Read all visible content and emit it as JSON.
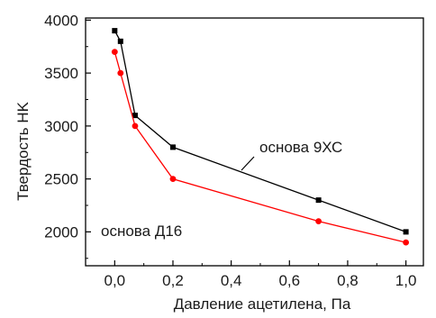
{
  "chart_data": {
    "type": "line",
    "xlabel": "Давление ацетилена, Па",
    "ylabel": "Твердость HK",
    "xlim": [
      -0.1,
      1.06
    ],
    "ylim": [
      1680,
      4020
    ],
    "x_ticks": [
      0.0,
      0.2,
      0.4,
      0.6,
      0.8,
      1.0
    ],
    "x_tick_labels": [
      "0,0",
      "0,2",
      "0,4",
      "0,6",
      "0,8",
      "1,0"
    ],
    "y_ticks": [
      2000,
      2500,
      3000,
      3500,
      4000
    ],
    "y_tick_labels": [
      "2000",
      "2500",
      "3000",
      "3500",
      "4000"
    ],
    "grid": false,
    "series": [
      {
        "name": "основа 9ХС",
        "color": "#000000",
        "marker": "square",
        "x": [
          0.0,
          0.02,
          0.07,
          0.2,
          0.7,
          1.0
        ],
        "y": [
          3900,
          3800,
          3100,
          2800,
          2300,
          2000
        ]
      },
      {
        "name": "основа Д16",
        "color": "#ff0000",
        "marker": "circle",
        "x": [
          0.0,
          0.02,
          0.07,
          0.2,
          0.7,
          1.0
        ],
        "y": [
          3700,
          3500,
          3000,
          2500,
          2100,
          1900
        ]
      }
    ],
    "annotations": [
      {
        "text": "основа 9ХС",
        "series": 0
      },
      {
        "text": "основа Д16",
        "series": 1
      }
    ]
  }
}
